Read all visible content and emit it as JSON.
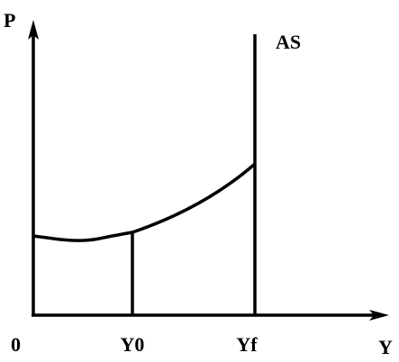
{
  "axes": {
    "y_label": "P",
    "x_label": "Y",
    "origin": "0"
  },
  "ticks": [
    "Y0",
    "Yf"
  ],
  "curve_label": "AS"
}
